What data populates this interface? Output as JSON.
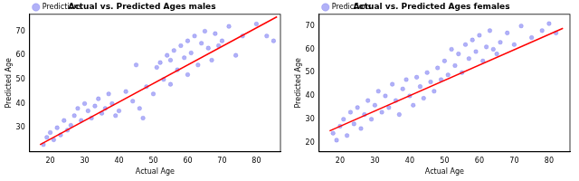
{
  "chart_data": [
    {
      "type": "scatter",
      "title": "Actual vs. Predicted Ages males",
      "x_label": "Actual Age",
      "y_label": "Predicted Age",
      "xlim": [
        14,
        87
      ],
      "xticks": [
        20,
        30,
        40,
        50,
        60,
        70,
        80
      ],
      "ylim": [
        20,
        77
      ],
      "yticks": [
        30,
        40,
        50,
        60,
        70
      ],
      "grid": false,
      "legend": "upper left",
      "series": [
        {
          "name": "Predictions",
          "color": "#6464f0",
          "marker": "o",
          "x": [
            18,
            19,
            20,
            21,
            22,
            23,
            24,
            25,
            26,
            27,
            28,
            29,
            30,
            31,
            32,
            33,
            34,
            35,
            36,
            37,
            38,
            39,
            40,
            42,
            44,
            46,
            48,
            50,
            51,
            52,
            53,
            54,
            55,
            56,
            57,
            58,
            59,
            60,
            61,
            62,
            63,
            64,
            65,
            66,
            67,
            68,
            69,
            70,
            72,
            74,
            76,
            80,
            83,
            85,
            45,
            47,
            55,
            60
          ],
          "values": [
            23,
            26,
            28,
            25,
            30,
            27,
            33,
            29,
            31,
            35,
            38,
            33,
            40,
            37,
            34,
            39,
            42,
            36,
            38,
            44,
            40,
            35,
            37,
            45,
            41,
            38,
            47,
            44,
            55,
            57,
            50,
            60,
            58,
            62,
            54,
            64,
            59,
            66,
            61,
            68,
            56,
            65,
            70,
            63,
            58,
            69,
            64,
            66,
            72,
            60,
            68,
            73,
            68,
            66,
            56,
            34,
            48,
            52
          ]
        },
        {
          "type": "line",
          "color": "#ff0000",
          "x": [
            17,
            86
          ],
          "values": [
            23,
            76
          ]
        }
      ]
    },
    {
      "type": "scatter",
      "title": "Actual vs. Predicted Ages females",
      "x_label": "Actual Age",
      "y_label": "Predicted Age",
      "xlim": [
        14,
        86
      ],
      "xticks": [
        20,
        30,
        40,
        50,
        60,
        70,
        80
      ],
      "ylim": [
        16,
        75
      ],
      "yticks": [
        20,
        30,
        40,
        50,
        60,
        70
      ],
      "grid": false,
      "legend": "upper left",
      "series": [
        {
          "name": "Predictions",
          "color": "#6464f0",
          "marker": "o",
          "x": [
            18,
            19,
            20,
            21,
            22,
            23,
            24,
            25,
            26,
            27,
            28,
            29,
            30,
            31,
            32,
            33,
            34,
            35,
            36,
            37,
            38,
            39,
            40,
            41,
            42,
            43,
            44,
            45,
            46,
            47,
            48,
            49,
            50,
            51,
            52,
            53,
            54,
            55,
            56,
            57,
            58,
            59,
            60,
            61,
            62,
            63,
            64,
            65,
            66,
            68,
            70,
            72,
            75,
            78,
            80,
            82
          ],
          "values": [
            24,
            21,
            27,
            30,
            23,
            33,
            28,
            35,
            26,
            32,
            38,
            30,
            36,
            42,
            33,
            40,
            35,
            45,
            38,
            32,
            43,
            47,
            40,
            36,
            48,
            44,
            39,
            50,
            46,
            42,
            52,
            47,
            55,
            49,
            60,
            53,
            58,
            50,
            62,
            56,
            64,
            59,
            66,
            55,
            61,
            68,
            60,
            58,
            63,
            67,
            62,
            70,
            65,
            68,
            71,
            67
          ]
        },
        {
          "type": "line",
          "color": "#ff0000",
          "x": [
            17,
            84
          ],
          "values": [
            25,
            69
          ]
        }
      ]
    }
  ]
}
